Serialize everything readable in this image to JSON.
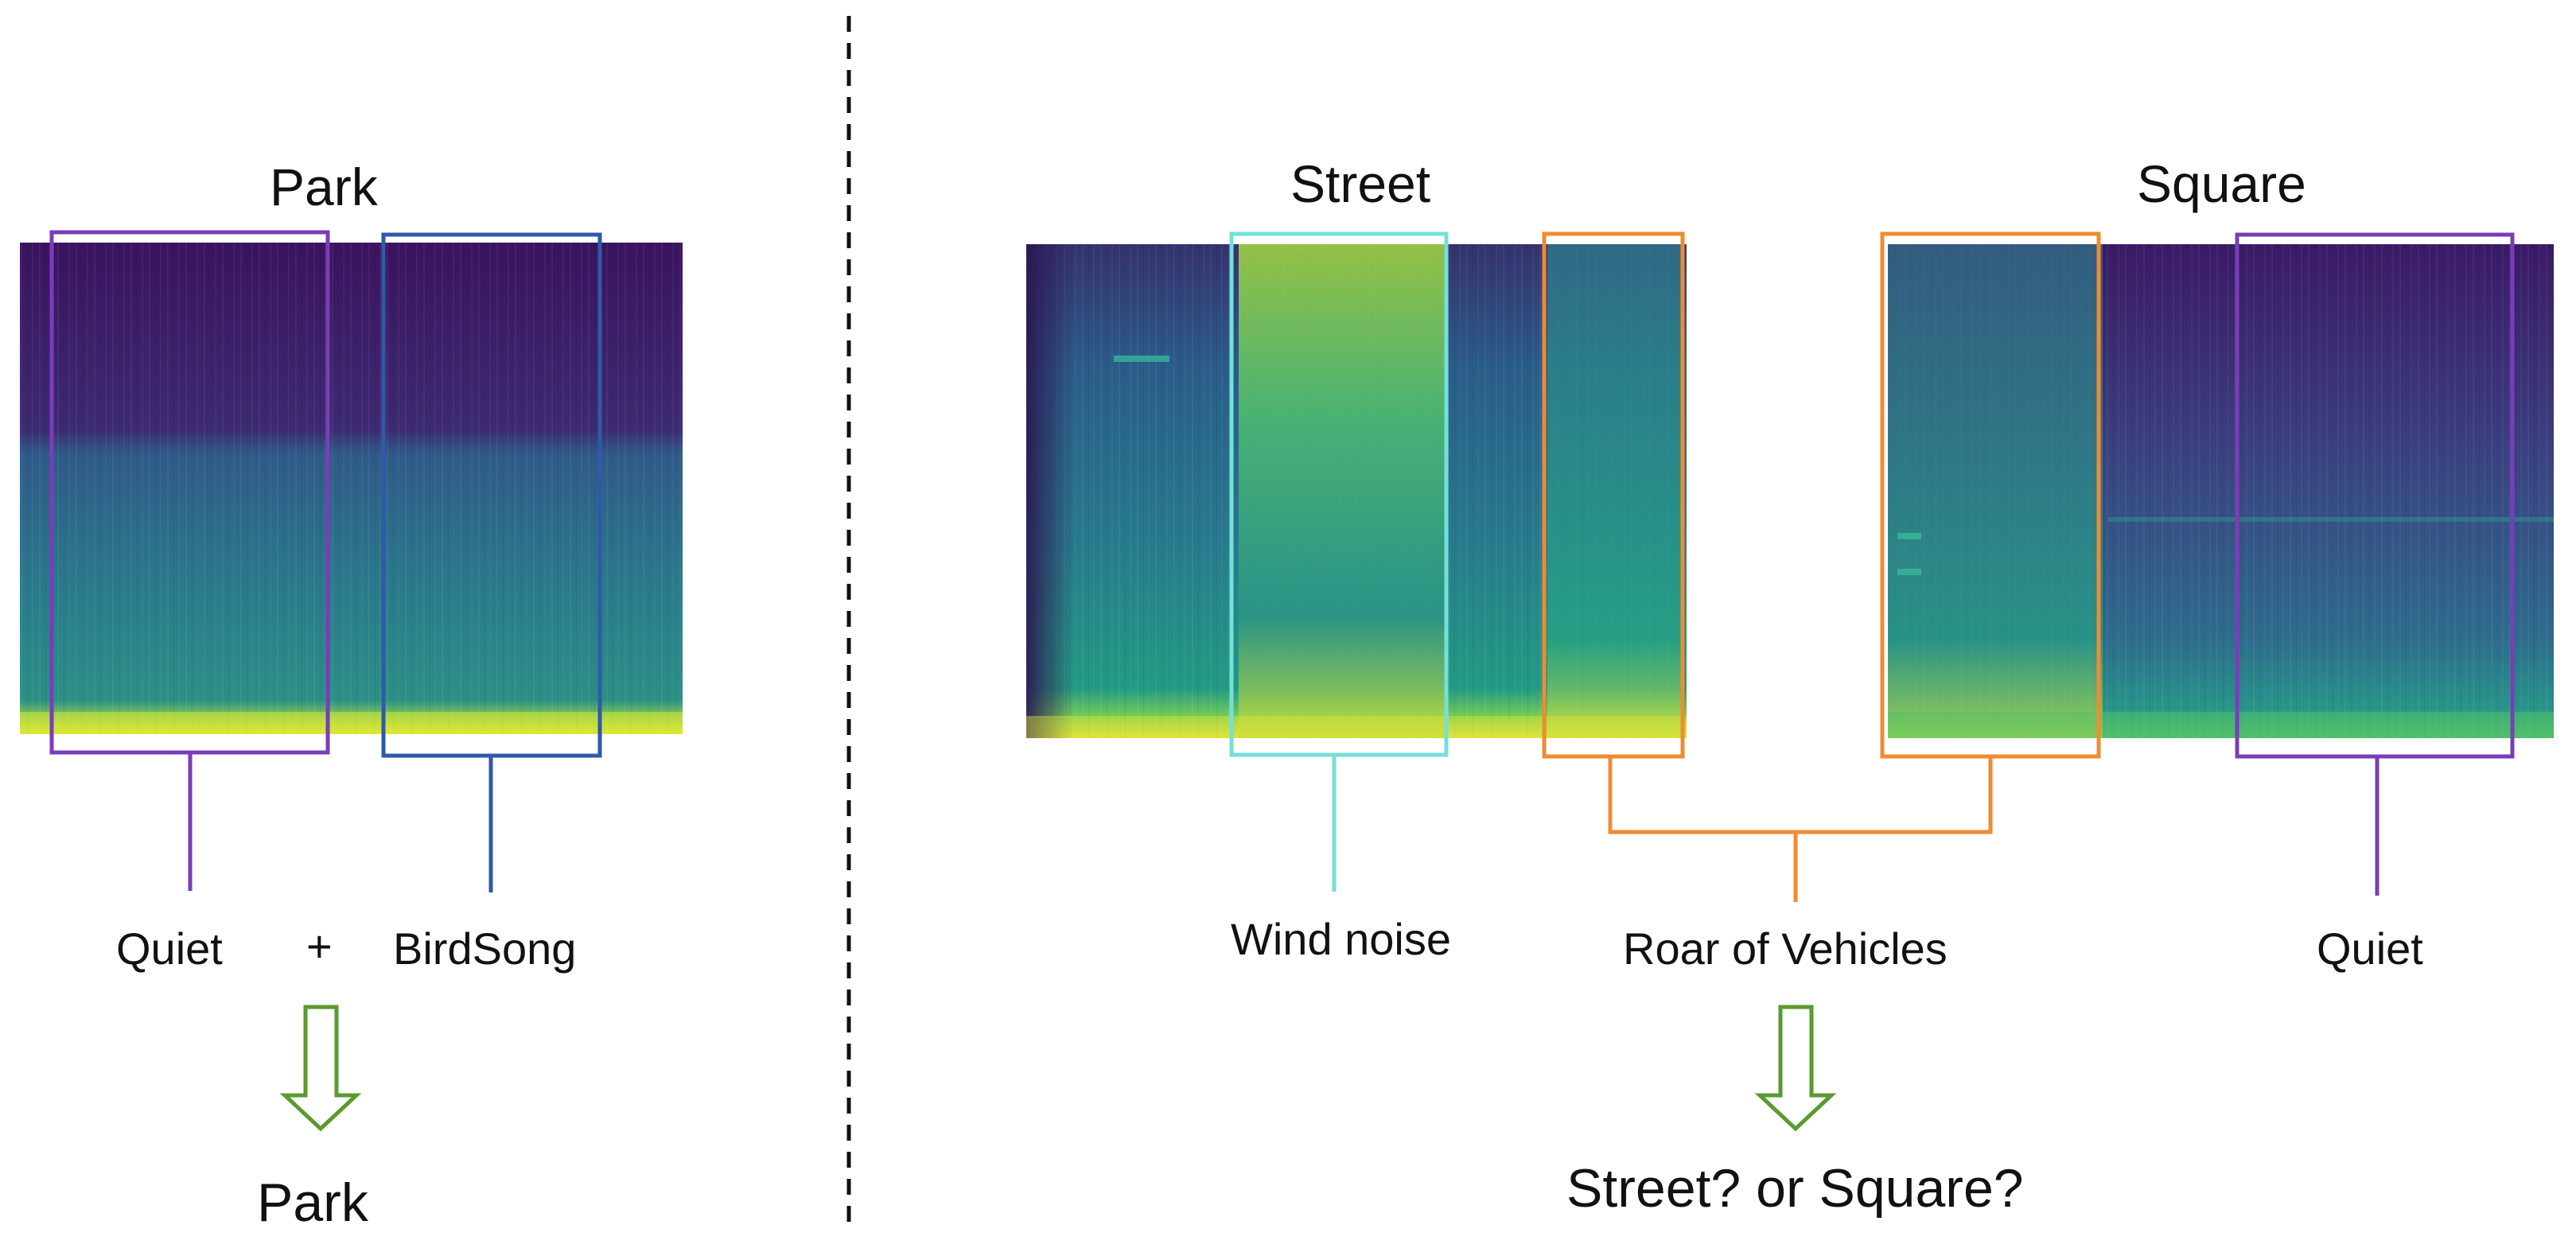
{
  "left_panel": {
    "title": "Park",
    "box_labels": [
      "Quiet",
      "BirdSong"
    ],
    "plus": "+",
    "conclusion": "Park"
  },
  "right_panel": {
    "titles": [
      "Street",
      "Square"
    ],
    "labels": [
      "Wind noise",
      "Roar of Vehicles",
      "Quiet"
    ],
    "conclusion": "Street? or Square?"
  },
  "colors": {
    "quiet_box": "#7a3db8",
    "birdsong_box": "#2f5aa8",
    "wind_box": "#74e0d8",
    "vehicle_box": "#f28a30",
    "arrow": "#5a9a2e",
    "divider": "#111111",
    "spec_dark": "#3b0f5f",
    "spec_mid": "#2a7c8e",
    "spec_light": "#f3e830"
  },
  "icons": [
    "down-arrow-icon",
    "down-arrow-icon"
  ]
}
